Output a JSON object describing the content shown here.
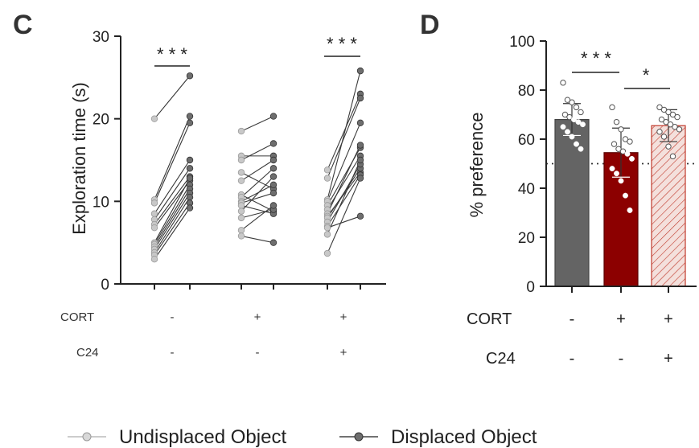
{
  "chart_data": [
    {
      "panel": "C",
      "type": "scatter",
      "ylabel": "Exploration time (s)",
      "ylim": [
        0,
        30
      ],
      "yticks": [
        "0",
        "10",
        "20",
        "30"
      ],
      "condition_rows": [
        {
          "label": "CORT",
          "values": [
            "-",
            "+",
            "+"
          ]
        },
        {
          "label": "C24",
          "values": [
            "-",
            "-",
            "+"
          ]
        }
      ],
      "significance": [
        "* * *",
        "* * *"
      ],
      "series": [
        {
          "name": "Undisplaced Object",
          "color": "#c8c8c8"
        },
        {
          "name": "Displaced Object",
          "color": "#6e6e6e"
        }
      ],
      "groups": [
        {
          "pairs": [
            [
              20.0,
              25.2
            ],
            [
              10.2,
              20.3
            ],
            [
              9.8,
              19.5
            ],
            [
              8.5,
              15.0
            ],
            [
              7.8,
              14.0
            ],
            [
              7.2,
              13.0
            ],
            [
              6.8,
              12.5
            ],
            [
              5.0,
              12.8
            ],
            [
              4.8,
              12.0
            ],
            [
              4.5,
              11.5
            ],
            [
              4.2,
              11.0
            ],
            [
              3.8,
              10.5
            ],
            [
              3.5,
              9.8
            ],
            [
              3.0,
              9.2
            ]
          ]
        },
        {
          "pairs": [
            [
              18.5,
              20.3
            ],
            [
              15.5,
              15.5
            ],
            [
              15.0,
              17.0
            ],
            [
              13.5,
              11.5
            ],
            [
              12.5,
              15.0
            ],
            [
              10.8,
              8.8
            ],
            [
              10.5,
              14.0
            ],
            [
              10.0,
              12.0
            ],
            [
              9.8,
              11.0
            ],
            [
              9.5,
              8.5
            ],
            [
              8.8,
              13.0
            ],
            [
              8.0,
              9.0
            ],
            [
              6.5,
              9.5
            ],
            [
              5.8,
              5.0
            ]
          ]
        },
        {
          "pairs": [
            [
              13.8,
              23.0
            ],
            [
              12.8,
              22.5
            ],
            [
              10.2,
              25.8
            ],
            [
              10.0,
              19.5
            ],
            [
              9.5,
              16.5
            ],
            [
              9.0,
              15.5
            ],
            [
              8.5,
              16.8
            ],
            [
              8.2,
              13.5
            ],
            [
              8.0,
              14.0
            ],
            [
              7.5,
              14.5
            ],
            [
              7.0,
              13.2
            ],
            [
              6.8,
              8.2
            ],
            [
              6.0,
              15.0
            ],
            [
              3.7,
              12.8
            ]
          ]
        }
      ]
    },
    {
      "panel": "D",
      "type": "bar",
      "ylabel": "% preference",
      "ylim": [
        0,
        100
      ],
      "yticks": [
        "0",
        "20",
        "40",
        "60",
        "80",
        "100"
      ],
      "reference_line": 50,
      "categories": [
        "CORT- / C24-",
        "CORT+ / C24-",
        "CORT+ / C24+"
      ],
      "condition_rows": [
        {
          "label": "CORT",
          "values": [
            "-",
            "+",
            "+"
          ]
        },
        {
          "label": "C24",
          "values": [
            "-",
            "-",
            "+"
          ]
        }
      ],
      "values": [
        68,
        54.5,
        65.5
      ],
      "errors": [
        6.5,
        10.0,
        6.5
      ],
      "colors": [
        "#646464",
        "#8c0000",
        "#f4e0dc"
      ],
      "hatched": [
        false,
        false,
        true
      ],
      "significance": [
        "* * *",
        "*"
      ],
      "points": [
        [
          83,
          76,
          75,
          73,
          71,
          70,
          69,
          68,
          67,
          66,
          65,
          63,
          61,
          58,
          56
        ],
        [
          73,
          67,
          64,
          60,
          59,
          58,
          56,
          55,
          54,
          52,
          48,
          46,
          43,
          37,
          31
        ],
        [
          73,
          72,
          71,
          70,
          69,
          68,
          67,
          66,
          65,
          64,
          63,
          61,
          57,
          53
        ]
      ]
    }
  ],
  "panel_c": {
    "letter": "C"
  },
  "panel_d": {
    "letter": "D"
  }
}
